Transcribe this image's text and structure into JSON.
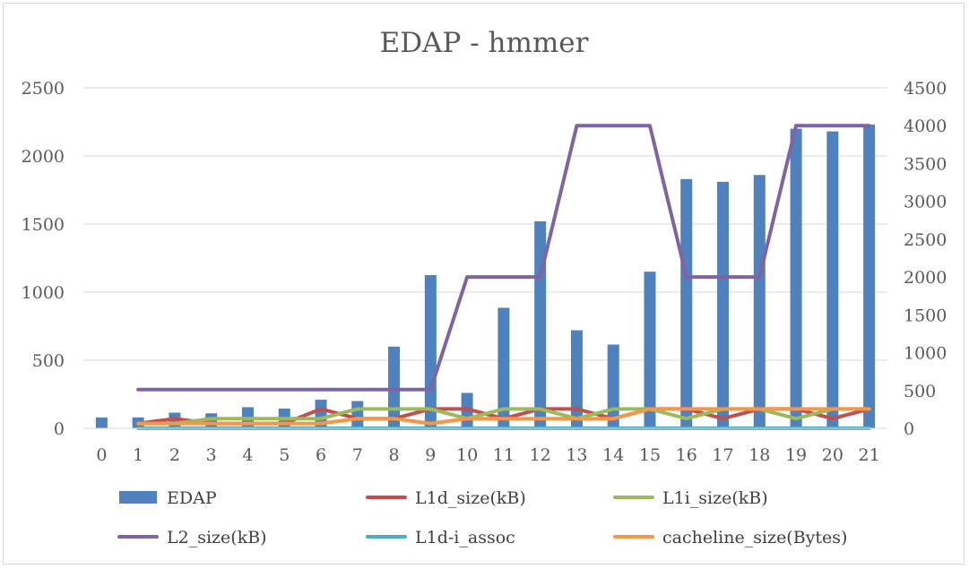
{
  "chart_data": {
    "type": "bar+line",
    "title": "EDAP - hmmer",
    "categories": [
      "0",
      "1",
      "2",
      "3",
      "4",
      "5",
      "6",
      "7",
      "8",
      "9",
      "10",
      "11",
      "12",
      "13",
      "14",
      "15",
      "16",
      "17",
      "18",
      "19",
      "20",
      "21"
    ],
    "y_left": {
      "min": 0,
      "max": 2500,
      "ticks": [
        "0",
        "500",
        "1000",
        "1500",
        "2000",
        "2500"
      ]
    },
    "y_right": {
      "min": 0,
      "max": 4500,
      "ticks": [
        "0",
        "500",
        "1000",
        "1500",
        "2000",
        "2500",
        "3000",
        "3500",
        "4000",
        "4500"
      ]
    },
    "grid": true,
    "legend_position": "bottom",
    "series": [
      {
        "name": "EDAP",
        "kind": "bar",
        "axis": "left",
        "color": "#4f81bd",
        "values": [
          80,
          80,
          115,
          110,
          155,
          145,
          210,
          200,
          600,
          1125,
          260,
          885,
          1520,
          720,
          615,
          1150,
          1830,
          1810,
          1860,
          2200,
          2180,
          2230
        ]
      },
      {
        "name": "L1d_size(kB)",
        "kind": "line",
        "axis": "right",
        "color": "#c0504d",
        "values": [
          null,
          64,
          128,
          64,
          64,
          64,
          256,
          128,
          128,
          256,
          256,
          128,
          256,
          256,
          128,
          256,
          256,
          128,
          256,
          256,
          128,
          256
        ]
      },
      {
        "name": "L1i_size(kB)",
        "kind": "line",
        "axis": "right",
        "color": "#9bbb59",
        "values": [
          null,
          64,
          64,
          128,
          128,
          128,
          128,
          256,
          256,
          256,
          128,
          256,
          256,
          128,
          256,
          256,
          128,
          256,
          256,
          128,
          256,
          256
        ]
      },
      {
        "name": "L2_size(kB)",
        "kind": "line",
        "axis": "right",
        "color": "#8064a2",
        "values": [
          null,
          512,
          512,
          512,
          512,
          512,
          512,
          512,
          512,
          512,
          2000,
          2000,
          2000,
          4000,
          4000,
          4000,
          2000,
          2000,
          2000,
          4000,
          4000,
          4000
        ]
      },
      {
        "name": "L1d-i_assoc",
        "kind": "line",
        "axis": "right",
        "color": "#4bacc6",
        "values": [
          null,
          2,
          2,
          2,
          2,
          2,
          2,
          2,
          2,
          2,
          2,
          2,
          2,
          2,
          2,
          2,
          2,
          2,
          2,
          2,
          2,
          2
        ]
      },
      {
        "name": "cacheline_size(Bytes)",
        "kind": "line",
        "axis": "right",
        "color": "#f79646",
        "values": [
          null,
          64,
          64,
          64,
          64,
          64,
          64,
          128,
          128,
          64,
          128,
          128,
          128,
          128,
          128,
          256,
          256,
          256,
          256,
          256,
          256,
          256
        ]
      }
    ]
  }
}
